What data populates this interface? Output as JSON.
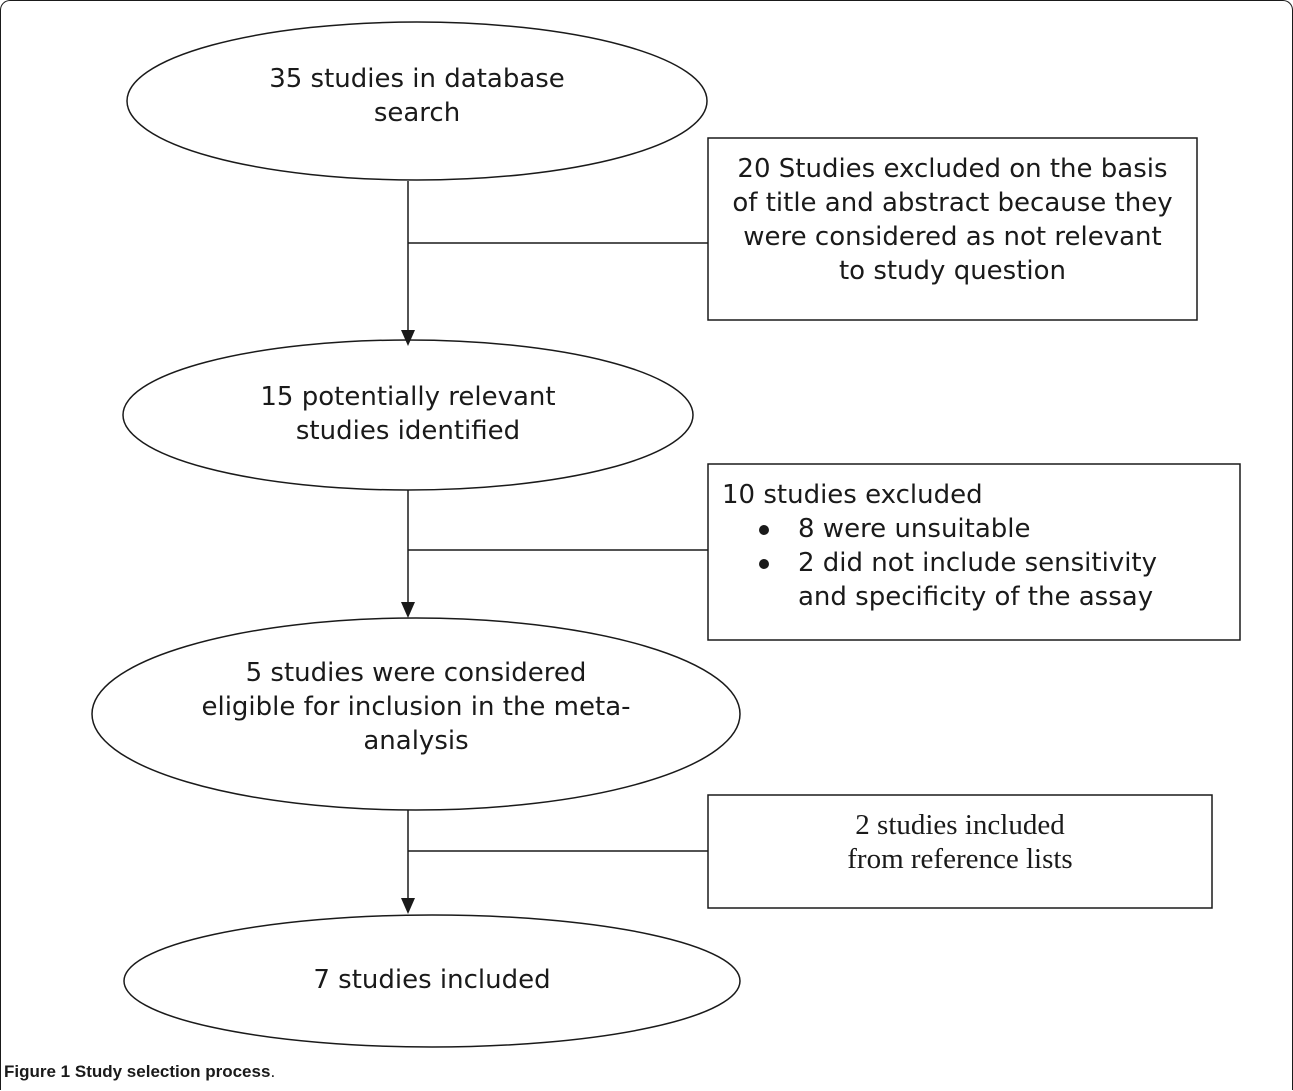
{
  "nodes": {
    "n1": {
      "lines": [
        "35 studies in database",
        "search"
      ]
    },
    "n2": {
      "lines": [
        "15 potentially relevant",
        "studies identified"
      ]
    },
    "n3": {
      "lines": [
        "5 studies were considered",
        "eligible for inclusion in the meta-",
        "analysis"
      ]
    },
    "n4": {
      "lines": [
        "7 studies included"
      ]
    }
  },
  "exclusions": {
    "e1": {
      "lines": [
        "20 Studies excluded on the basis",
        "of title and abstract because they",
        "were considered as not relevant",
        "to study question"
      ]
    },
    "e2": {
      "heading": "10 studies excluded",
      "items": [
        "8 were unsuitable",
        "2 did not include sensitivity",
        "and specificity of the assay"
      ]
    },
    "e3": {
      "lines": [
        "2 studies included",
        "from reference lists"
      ]
    }
  },
  "caption": {
    "label": "Figure 1",
    "text": "Study selection process"
  }
}
